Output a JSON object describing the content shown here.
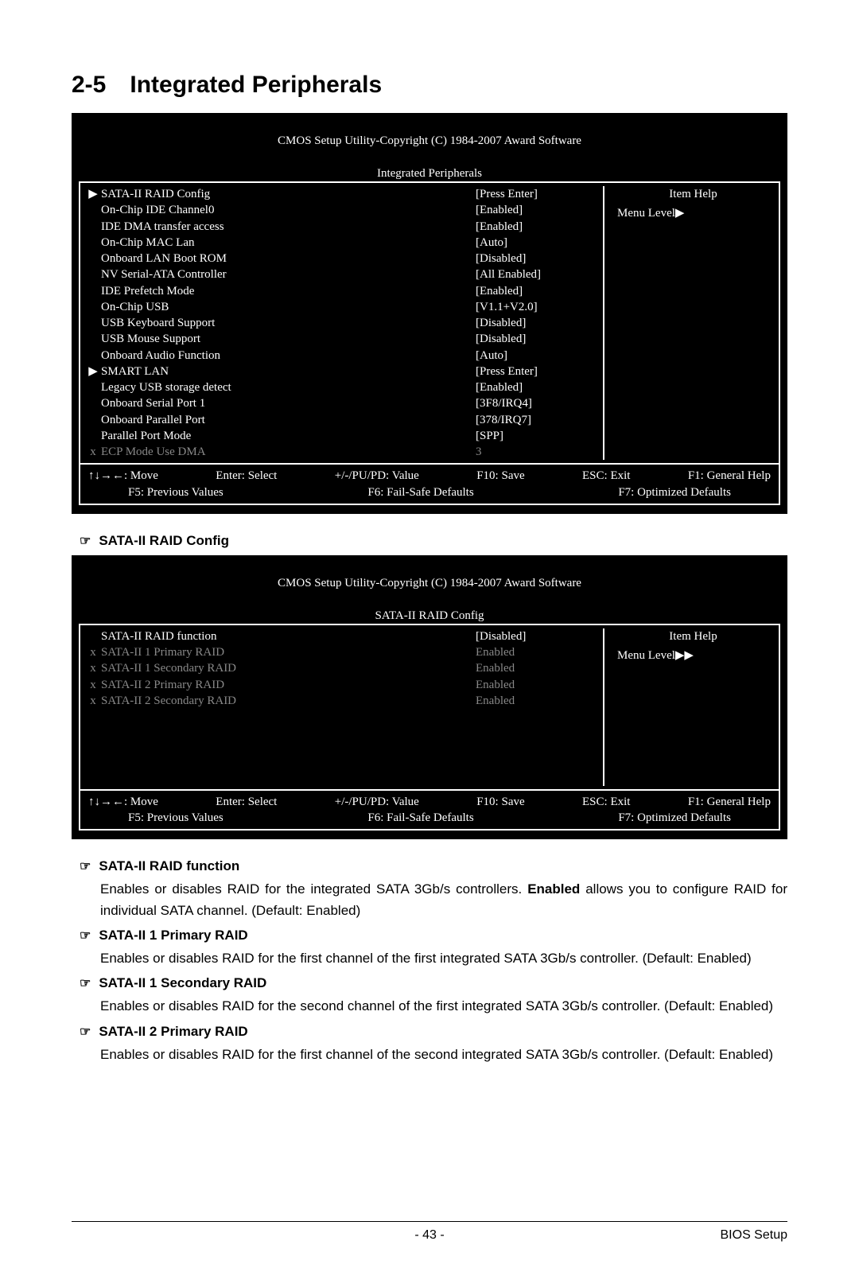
{
  "section": {
    "number": "2-5",
    "title": "Integrated Peripherals"
  },
  "bios1": {
    "header_line1": "CMOS Setup Utility-Copyright (C) 1984-2007 Award Software",
    "header_line2": "Integrated Peripherals",
    "help_title": "Item Help",
    "menu_level": "Menu Level",
    "menu_arrows": "▶",
    "rows": [
      {
        "mark": "▶",
        "label": "SATA-II RAID Config",
        "val": "[Press Enter]",
        "dim": false
      },
      {
        "mark": "",
        "label": "On-Chip IDE Channel0",
        "val": "[Enabled]",
        "dim": false
      },
      {
        "mark": "",
        "label": "IDE DMA transfer access",
        "val": "[Enabled]",
        "dim": false
      },
      {
        "mark": "",
        "label": "On-Chip MAC Lan",
        "val": "[Auto]",
        "dim": false
      },
      {
        "mark": "",
        "label": "Onboard LAN Boot ROM",
        "val": "[Disabled]",
        "dim": false
      },
      {
        "mark": "",
        "label": "NV Serial-ATA Controller",
        "val": "[All Enabled]",
        "dim": false
      },
      {
        "mark": "",
        "label": "IDE Prefetch Mode",
        "val": "[Enabled]",
        "dim": false
      },
      {
        "mark": "",
        "label": "On-Chip USB",
        "val": "[V1.1+V2.0]",
        "dim": false
      },
      {
        "mark": "",
        "label": "USB Keyboard Support",
        "val": "[Disabled]",
        "dim": false
      },
      {
        "mark": "",
        "label": "USB Mouse Support",
        "val": "[Disabled]",
        "dim": false
      },
      {
        "mark": "",
        "label": "Onboard Audio Function",
        "val": "[Auto]",
        "dim": false
      },
      {
        "mark": "▶",
        "label": "SMART LAN",
        "val": "[Press Enter]",
        "dim": false
      },
      {
        "mark": "",
        "label": "Legacy USB storage detect",
        "val": "[Enabled]",
        "dim": false
      },
      {
        "mark": "",
        "label": "Onboard Serial Port 1",
        "val": "[3F8/IRQ4]",
        "dim": false
      },
      {
        "mark": "",
        "label": "Onboard Parallel Port",
        "val": "[378/IRQ7]",
        "dim": false
      },
      {
        "mark": "",
        "label": "Parallel Port Mode",
        "val": "[SPP]",
        "dim": false
      },
      {
        "mark": "x",
        "label": "ECP Mode Use DMA",
        "val": "3",
        "dim": true
      }
    ],
    "footer": {
      "r1": {
        "a": "↑↓→←: Move",
        "b": "Enter: Select",
        "c": "+/-/PU/PD: Value",
        "d": "F10: Save",
        "e": "ESC: Exit",
        "f": "F1: General Help"
      },
      "r2": {
        "a": "F5: Previous Values",
        "b": "F6: Fail-Safe Defaults",
        "c": "F7: Optimized Defaults"
      }
    }
  },
  "section2_title": "SATA-II RAID Config",
  "bios2": {
    "header_line1": "CMOS Setup Utility-Copyright (C) 1984-2007 Award Software",
    "header_line2": "SATA-II RAID Config",
    "help_title": "Item Help",
    "menu_level": "Menu Level",
    "menu_arrows": "▶▶",
    "rows": [
      {
        "mark": "",
        "label": "SATA-II RAID function",
        "val": "[Disabled]",
        "dim": false
      },
      {
        "mark": "x",
        "label": "SATA-II 1 Primary RAID",
        "val": "Enabled",
        "dim": true
      },
      {
        "mark": "x",
        "label": "SATA-II 1 Secondary RAID",
        "val": "Enabled",
        "dim": true
      },
      {
        "mark": "x",
        "label": "SATA-II 2 Primary RAID",
        "val": "Enabled",
        "dim": true
      },
      {
        "mark": "x",
        "label": "SATA-II 2 Secondary RAID",
        "val": "Enabled",
        "dim": true
      }
    ],
    "footer": {
      "r1": {
        "a": "↑↓→←: Move",
        "b": "Enter: Select",
        "c": "+/-/PU/PD: Value",
        "d": "F10: Save",
        "e": "ESC: Exit",
        "f": "F1: General Help"
      },
      "r2": {
        "a": "F5: Previous Values",
        "b": "F6: Fail-Safe Defaults",
        "c": "F7: Optimized Defaults"
      }
    }
  },
  "descriptions": [
    {
      "title": "SATA-II RAID function",
      "body_pre": "Enables or disables RAID for the integrated SATA 3Gb/s controllers. ",
      "bold": "Enabled",
      "body_post": " allows you to configure RAID for individual SATA channel. (Default: Enabled)"
    },
    {
      "title": "SATA-II 1 Primary RAID",
      "body_pre": "Enables or disables RAID for the first channel of the first integrated SATA 3Gb/s controller. (Default: Enabled)",
      "bold": "",
      "body_post": ""
    },
    {
      "title": "SATA-II 1 Secondary RAID",
      "body_pre": "Enables or disables RAID for the second channel of the first integrated SATA 3Gb/s controller. (Default: Enabled)",
      "bold": "",
      "body_post": ""
    },
    {
      "title": "SATA-II 2 Primary RAID",
      "body_pre": "Enables or disables RAID for the first channel of the second integrated SATA 3Gb/s controller. (Default: Enabled)",
      "bold": "",
      "body_post": ""
    }
  ],
  "footer": {
    "page": "- 43 -",
    "right": "BIOS Setup"
  },
  "colors": {
    "bios_bg": "#000000",
    "bios_fg": "#ffffff",
    "dim": "#888888",
    "page_bg": "#ffffff"
  }
}
